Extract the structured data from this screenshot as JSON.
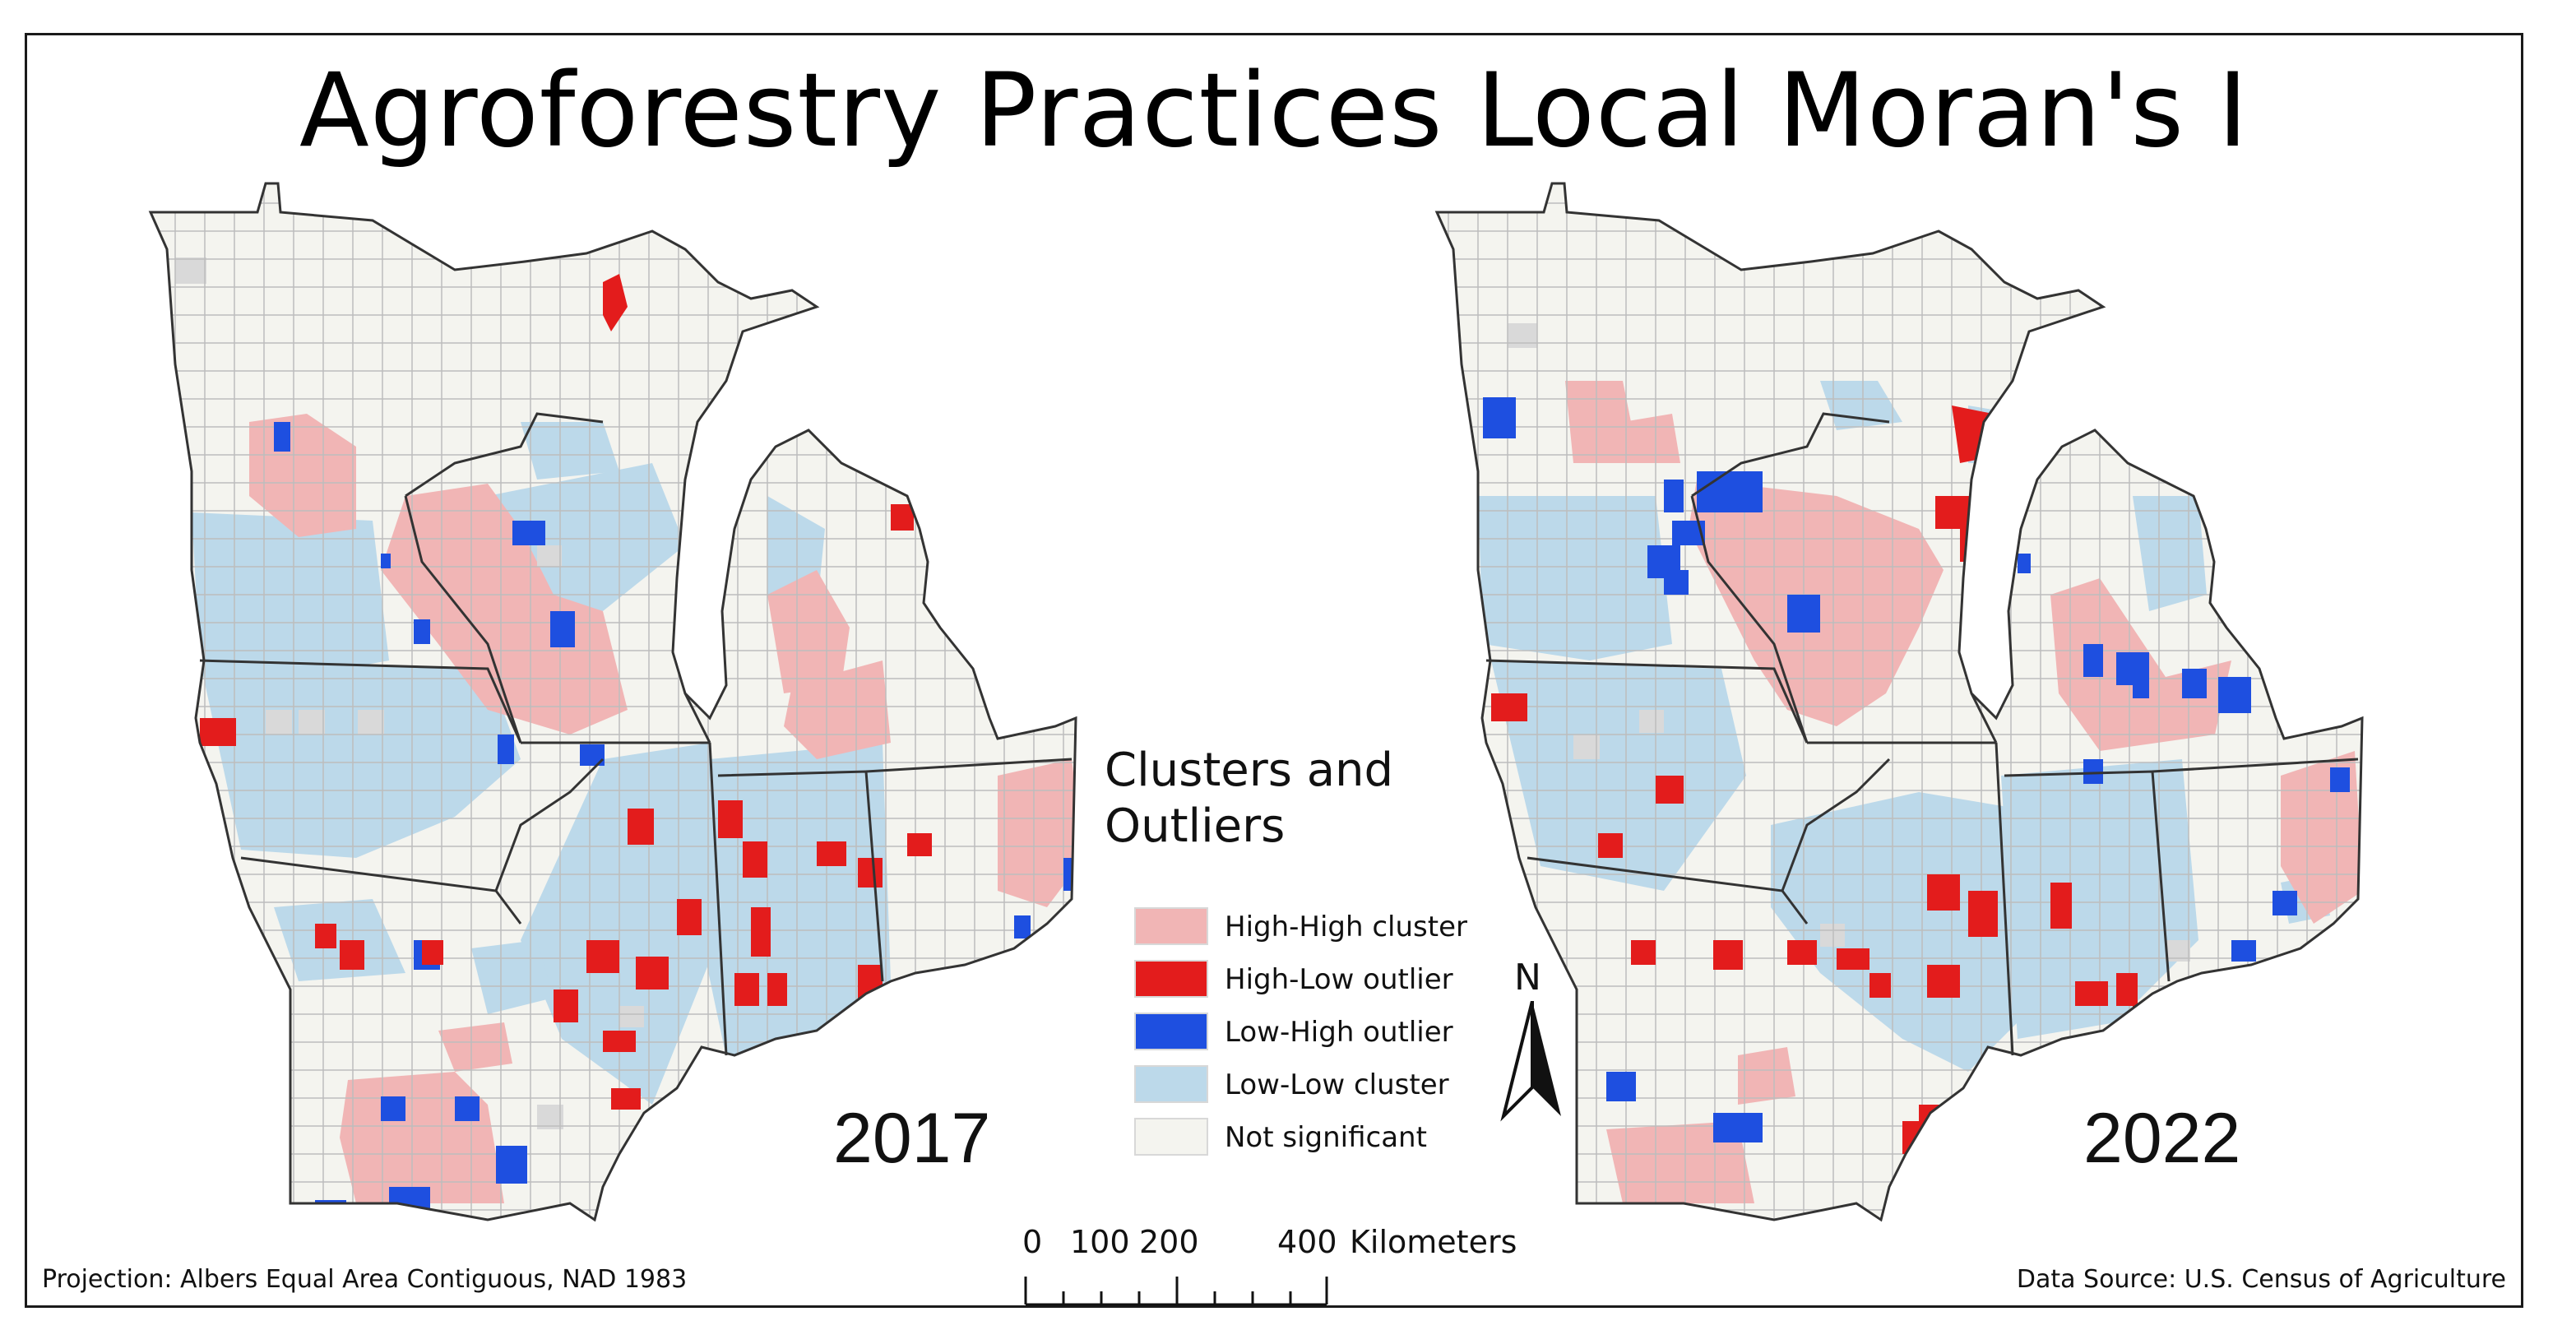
{
  "title": "Agroforestry Practices Local Moran's I",
  "maps": [
    {
      "year": "2017"
    },
    {
      "year": "2022"
    }
  ],
  "legend": {
    "title": "Clusters and Outliers",
    "items": [
      {
        "label": "High-High cluster",
        "color": "#f1b5b5"
      },
      {
        "label": "High-Low outlier",
        "color": "#e31c1c"
      },
      {
        "label": "Low-High outlier",
        "color": "#1e4fe0"
      },
      {
        "label": "Low-Low cluster",
        "color": "#bcd9ea"
      },
      {
        "label": "Not significant",
        "color": "#f4f4ef"
      }
    ]
  },
  "colors": {
    "high_high": "#f1b5b5",
    "high_low": "#e31c1c",
    "low_high": "#1e4fe0",
    "low_low": "#bcd9ea",
    "not_significant": "#f4f4ef",
    "no_data": "#d9d9d9",
    "county_line": "#b8b8b8",
    "state_line": "#333333"
  },
  "north_arrow": {
    "label": "N"
  },
  "scale_bar": {
    "ticks": [
      "0",
      "100",
      "200",
      "400"
    ],
    "unit": "Kilometers"
  },
  "footer": {
    "projection": "Projection: Albers Equal Area Contiguous, NAD 1983",
    "source": "Data Source: U.S. Census of Agriculture"
  }
}
